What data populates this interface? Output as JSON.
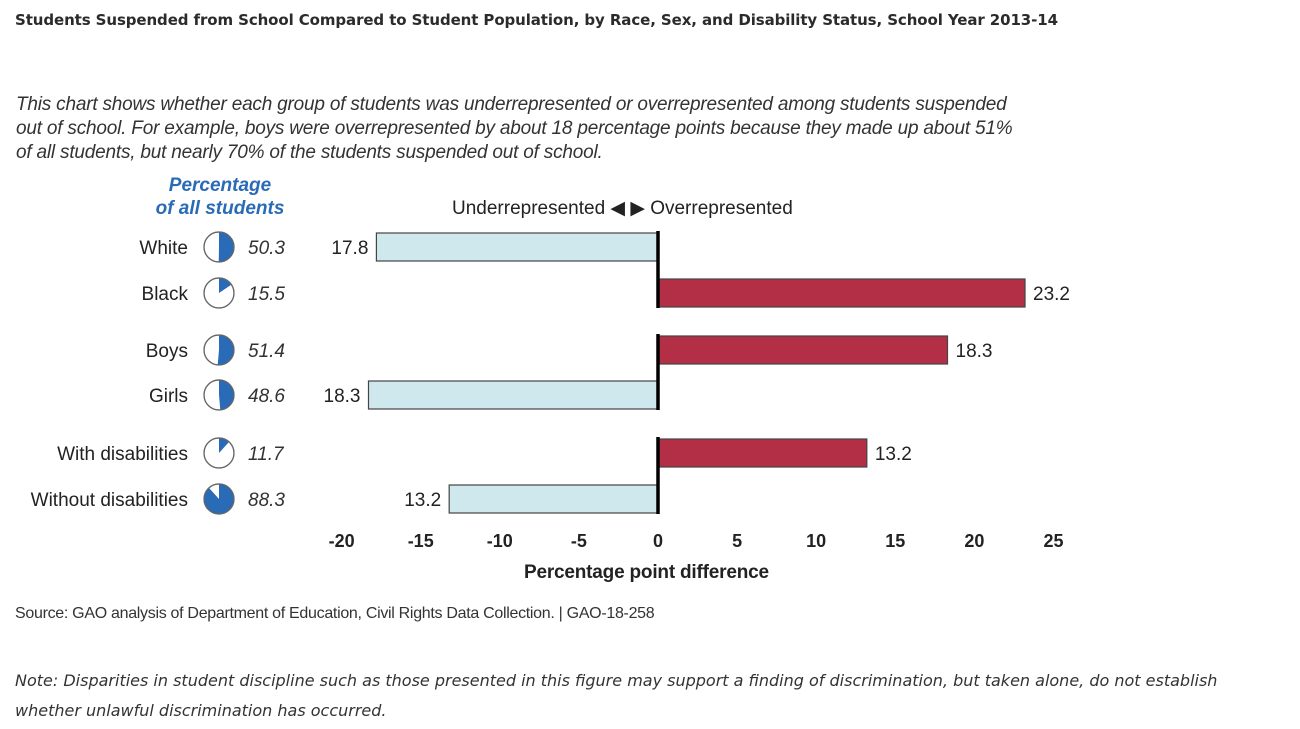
{
  "page": {
    "title": "Students Suspended from School Compared to Student Population, by Race, Sex, and Disability Status, School Year 2013-14",
    "description": "This chart shows whether each group of students was underrepresented or overrepresented among students suspended out of school. For example, boys were overrepresented by about 18 percentage points because they made up about 51% of all students, but nearly 70% of the students suspended out of school.",
    "pct_header_line1": "Percentage",
    "pct_header_line2": "of all students",
    "direction_header": "Underrepresented ◀ ▶ Overrepresented",
    "source": "Source: GAO analysis of Department of Education, Civil Rights Data Collection.  |  GAO-18-258",
    "note": "Note: Disparities in student discipline such as those presented in this figure may support a finding of discrimination, but taken alone, do not establish whether unlawful discrimination has occurred."
  },
  "colors": {
    "under": "#cfe8ee",
    "over": "#b22f45",
    "pie_fill": "#2a6bb8",
    "axis": "#000000",
    "header_blue": "#2a6bb8"
  },
  "chart_data": {
    "type": "bar",
    "orientation": "horizontal",
    "title": "Students Suspended from School Compared to Student Population, by Race, Sex, and Disability Status, School Year 2013-14",
    "xlabel": "Percentage point difference",
    "ylabel": "",
    "xlim": [
      -20,
      25
    ],
    "xticks": [
      -20,
      -15,
      -10,
      -5,
      0,
      5,
      10,
      15,
      20,
      25
    ],
    "grid": false,
    "legend": "none",
    "categories": [
      "White",
      "Black",
      "Boys",
      "Girls",
      "With disabilities",
      "Without disabilities"
    ],
    "groups": [
      [
        "White",
        "Black"
      ],
      [
        "Boys",
        "Girls"
      ],
      [
        "With disabilities",
        "Without disabilities"
      ]
    ],
    "values": [
      -17.8,
      23.2,
      18.3,
      -18.3,
      13.2,
      -13.2
    ],
    "value_labels": [
      "17.8",
      "23.2",
      "18.3",
      "18.3",
      "13.2",
      "13.2"
    ],
    "percent_of_all_students": [
      50.3,
      15.5,
      51.4,
      48.6,
      11.7,
      88.3
    ],
    "percent_labels": [
      "50.3",
      "15.5",
      "51.4",
      "48.6",
      "11.7",
      "88.3"
    ]
  }
}
